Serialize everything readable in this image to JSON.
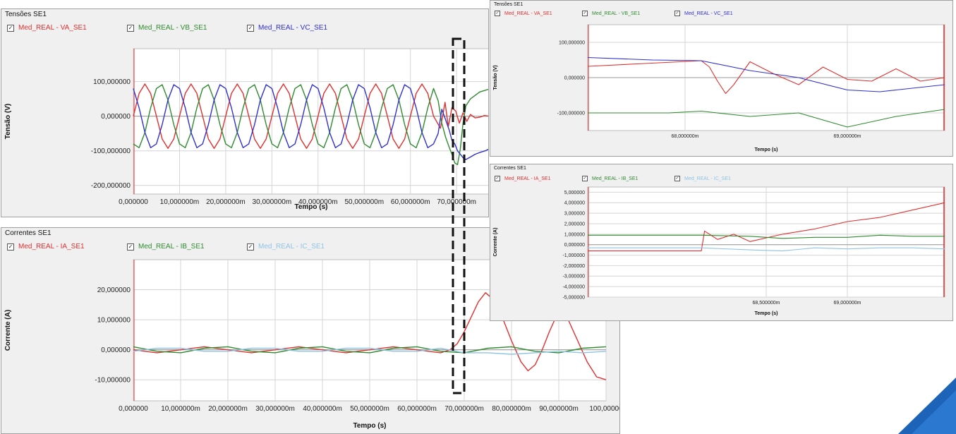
{
  "panels": [
    {
      "id": "tensoes-main",
      "title": "Tensões SE1",
      "legend": [
        {
          "label": "Med_REAL - VA_SE1",
          "color": "#e03030",
          "checked": "✓"
        },
        {
          "label": "Med_REAL - VB_SE1",
          "color": "#2e8b2e",
          "checked": "✓"
        },
        {
          "label": "Med_REAL - VC_SE1",
          "color": "#3030d0",
          "checked": "✓"
        }
      ]
    },
    {
      "id": "correntes-main",
      "title": "Correntes SE1",
      "legend": [
        {
          "label": "Med_REAL - IA_SE1",
          "color": "#e03030",
          "checked": "✓"
        },
        {
          "label": "Med_REAL - IB_SE1",
          "color": "#2e8b2e",
          "checked": "✓"
        },
        {
          "label": "Med_REAL - IC_SE1",
          "color": "#8fc4e6",
          "checked": "✓"
        }
      ]
    },
    {
      "id": "tensoes-zoom",
      "title": "Tensões SE1",
      "legend": [
        {
          "label": "Med_REAL - VA_SE1",
          "color": "#e03030",
          "checked": "✓"
        },
        {
          "label": "Med_REAL - VB_SE1",
          "color": "#2e8b2e",
          "checked": "✓"
        },
        {
          "label": "Med_REAL - VC_SE1",
          "color": "#3030d0",
          "checked": "✓"
        }
      ]
    },
    {
      "id": "correntes-zoom",
      "title": "Correntes SE1",
      "legend": [
        {
          "label": "Med_REAL - IA_SE1",
          "color": "#e03030",
          "checked": "✓"
        },
        {
          "label": "Med_REAL - IB_SE1",
          "color": "#2e8b2e",
          "checked": "✓"
        },
        {
          "label": "Med_REAL - IC_SE1",
          "color": "#8fc4e6",
          "checked": "✓"
        }
      ]
    }
  ],
  "chart_data": [
    {
      "type": "line",
      "title": "Tensões SE1",
      "xlabel": "Tempo (s)",
      "ylabel": "Tensão (V)",
      "xlim": [
        0,
        0.077
      ],
      "ylim": [
        -225,
        195
      ],
      "xticks": [
        0,
        0.01,
        0.02,
        0.03,
        0.04,
        0.05,
        0.06,
        0.07
      ],
      "xtick_labels": [
        "0,000000",
        "10,000000m",
        "20,000000m",
        "30,000000m",
        "40,000000m",
        "50,000000m",
        "60,000000m",
        "70,000000m"
      ],
      "yticks": [
        100,
        0,
        -100,
        -200
      ],
      "ytick_labels": [
        "100,000000",
        "0,000000",
        "-100,000000",
        "-200,000000"
      ],
      "grid": true,
      "legend_position": "top",
      "series": [
        {
          "name": "Med_REAL - VA_SE1",
          "color": "#e03030",
          "x": [
            0,
            0.00125,
            0.0025,
            0.00375,
            0.005,
            0.00625,
            0.0075,
            0.00875,
            0.01,
            0.01125,
            0.0125,
            0.01375,
            0.015,
            0.01625,
            0.0175,
            0.01875,
            0.02,
            0.02125,
            0.0225,
            0.02375,
            0.025,
            0.02625,
            0.0275,
            0.02875,
            0.03,
            0.03125,
            0.0325,
            0.03375,
            0.035,
            0.03625,
            0.0375,
            0.03875,
            0.04,
            0.04125,
            0.0425,
            0.04375,
            0.045,
            0.04625,
            0.0475,
            0.04875,
            0.05,
            0.05125,
            0.0525,
            0.05375,
            0.055,
            0.05625,
            0.0575,
            0.05875,
            0.06,
            0.06125,
            0.0625,
            0.06375,
            0.065,
            0.0665,
            0.0675,
            0.0682,
            0.069,
            0.0698,
            0.0706,
            0.0714,
            0.0722,
            0.073,
            0.074,
            0.075,
            0.076,
            0.077
          ],
          "values": [
            0,
            66,
            93,
            66,
            0,
            -66,
            -93,
            -66,
            0,
            66,
            93,
            66,
            0,
            -66,
            -93,
            -66,
            0,
            66,
            93,
            66,
            0,
            -66,
            -93,
            -66,
            0,
            66,
            93,
            66,
            0,
            -66,
            -93,
            -66,
            0,
            66,
            93,
            66,
            0,
            -66,
            -93,
            -66,
            0,
            66,
            93,
            66,
            0,
            -66,
            -93,
            -66,
            0,
            66,
            93,
            66,
            0,
            -35,
            40,
            -30,
            25,
            15,
            -20,
            10,
            -15,
            5,
            -5,
            -3,
            2,
            0
          ]
        },
        {
          "name": "Med_REAL - VB_SE1",
          "color": "#2e8b2e",
          "x": [
            0,
            0.00125,
            0.0025,
            0.00375,
            0.005,
            0.00625,
            0.0075,
            0.00875,
            0.01,
            0.01125,
            0.0125,
            0.01375,
            0.015,
            0.01625,
            0.0175,
            0.01875,
            0.02,
            0.02125,
            0.0225,
            0.02375,
            0.025,
            0.02625,
            0.0275,
            0.02875,
            0.03,
            0.03125,
            0.0325,
            0.03375,
            0.035,
            0.03625,
            0.0375,
            0.03875,
            0.04,
            0.04125,
            0.0425,
            0.04375,
            0.045,
            0.04625,
            0.0475,
            0.04875,
            0.05,
            0.05125,
            0.0525,
            0.05375,
            0.055,
            0.05625,
            0.0575,
            0.05875,
            0.06,
            0.06125,
            0.0625,
            0.06375,
            0.065,
            0.066,
            0.0668,
            0.0676,
            0.0684,
            0.069,
            0.0696,
            0.0702,
            0.0708,
            0.0714,
            0.072,
            0.073,
            0.074,
            0.075,
            0.0762,
            0.077
          ],
          "values": [
            -80,
            -91,
            -47,
            24,
            80,
            91,
            47,
            -24,
            -80,
            -91,
            -47,
            24,
            80,
            91,
            47,
            -24,
            -80,
            -91,
            -47,
            24,
            80,
            91,
            47,
            -24,
            -80,
            -91,
            -47,
            24,
            80,
            91,
            47,
            -24,
            -80,
            -91,
            -47,
            24,
            80,
            91,
            47,
            -24,
            -80,
            -91,
            -47,
            24,
            80,
            91,
            47,
            -24,
            -80,
            -91,
            -47,
            24,
            80,
            45,
            -20,
            -60,
            -90,
            -110,
            -135,
            -140,
            -95,
            -20,
            30,
            50,
            60,
            70,
            75,
            78
          ]
        },
        {
          "name": "Med_REAL - VC_SE1",
          "color": "#3030d0",
          "x": [
            0,
            0.00125,
            0.0025,
            0.00375,
            0.005,
            0.00625,
            0.0075,
            0.00875,
            0.01,
            0.01125,
            0.0125,
            0.01375,
            0.015,
            0.01625,
            0.0175,
            0.01875,
            0.02,
            0.02125,
            0.0225,
            0.02375,
            0.025,
            0.02625,
            0.0275,
            0.02875,
            0.03,
            0.03125,
            0.0325,
            0.03375,
            0.035,
            0.03625,
            0.0375,
            0.03875,
            0.04,
            0.04125,
            0.0425,
            0.04375,
            0.045,
            0.04625,
            0.0475,
            0.04875,
            0.05,
            0.05125,
            0.0525,
            0.05375,
            0.055,
            0.05625,
            0.0575,
            0.05875,
            0.06,
            0.06125,
            0.0625,
            0.06375,
            0.065,
            0.066,
            0.0668,
            0.0676,
            0.0684,
            0.069,
            0.0696,
            0.0702,
            0.0708,
            0.0714,
            0.072,
            0.073,
            0.074,
            0.075,
            0.0762,
            0.077
          ],
          "values": [
            80,
            24,
            -47,
            -91,
            -80,
            -24,
            47,
            91,
            80,
            24,
            -47,
            -91,
            -80,
            -24,
            47,
            91,
            80,
            24,
            -47,
            -91,
            -80,
            -24,
            47,
            91,
            80,
            24,
            -47,
            -91,
            -80,
            -24,
            47,
            91,
            80,
            24,
            -47,
            -91,
            -80,
            -24,
            47,
            91,
            80,
            24,
            -47,
            -91,
            -80,
            -24,
            47,
            91,
            80,
            24,
            -47,
            -91,
            -80,
            -50,
            20,
            -10,
            -40,
            -70,
            -80,
            -100,
            -110,
            -120,
            -125,
            -118,
            -110,
            -105,
            -100,
            -95
          ]
        }
      ]
    },
    {
      "type": "line",
      "title": "Correntes SE1",
      "xlabel": "Tempo (s)",
      "ylabel": "Corrente (A)",
      "xlim": [
        0,
        0.1
      ],
      "ylim": [
        -17,
        30
      ],
      "xticks": [
        0,
        0.01,
        0.02,
        0.03,
        0.04,
        0.05,
        0.06,
        0.07,
        0.08,
        0.09,
        0.1
      ],
      "xtick_labels": [
        "0,000000",
        "10,000000m",
        "20,000000m",
        "30,000000m",
        "40,000000m",
        "50,000000m",
        "60,000000m",
        "70,000000m",
        "80,000000m",
        "90,000000m",
        "100,00000"
      ],
      "yticks": [
        20,
        10,
        0,
        -10
      ],
      "ytick_labels": [
        "20,000000",
        "10,000000",
        "0,000000",
        "-10,000000"
      ],
      "grid": true,
      "legend_position": "top",
      "series": [
        {
          "name": "Med_REAL - IA_SE1",
          "color": "#e03030",
          "x": [
            0,
            0.005,
            0.01,
            0.015,
            0.02,
            0.025,
            0.03,
            0.035,
            0.04,
            0.045,
            0.05,
            0.055,
            0.06,
            0.065,
            0.067,
            0.0685,
            0.07,
            0.0715,
            0.073,
            0.0745,
            0.076,
            0.078,
            0.08,
            0.082,
            0.0835,
            0.085,
            0.0865,
            0.088,
            0.09,
            0.092,
            0.094,
            0.096,
            0.098,
            0.1
          ],
          "values": [
            0,
            -1,
            0,
            1,
            0,
            -1,
            0,
            1,
            0,
            -1,
            0,
            1,
            0,
            -1,
            0,
            2,
            6,
            11,
            16,
            19,
            17,
            11,
            3,
            -4,
            -7,
            -5,
            0,
            6,
            13,
            10,
            3,
            -4,
            -9,
            -10
          ]
        },
        {
          "name": "Med_REAL - IB_SE1",
          "color": "#2e8b2e",
          "x": [
            0,
            0.005,
            0.01,
            0.015,
            0.02,
            0.025,
            0.03,
            0.035,
            0.04,
            0.045,
            0.05,
            0.055,
            0.06,
            0.065,
            0.07,
            0.075,
            0.08,
            0.085,
            0.09,
            0.095,
            0.1
          ],
          "values": [
            1,
            -0.5,
            -1,
            0.5,
            1,
            -0.5,
            -1,
            0.5,
            1,
            -0.5,
            -1,
            0.5,
            1,
            -0.5,
            -1,
            0.5,
            1,
            -0.5,
            -1,
            0.5,
            1
          ]
        },
        {
          "name": "Med_REAL - IC_SE1",
          "color": "#8fc4e6",
          "x": [
            0,
            0.005,
            0.01,
            0.015,
            0.02,
            0.025,
            0.03,
            0.035,
            0.04,
            0.045,
            0.05,
            0.055,
            0.06,
            0.065,
            0.07,
            0.075,
            0.08,
            0.085,
            0.09,
            0.095,
            0.1
          ],
          "values": [
            -0.5,
            0.5,
            0.5,
            -0.5,
            -0.5,
            0.5,
            0.5,
            -0.5,
            -0.5,
            0.5,
            0.5,
            -0.5,
            -0.5,
            0.5,
            -1,
            -1,
            -1.5,
            -1,
            -0.5,
            -1,
            -0.5
          ]
        }
      ]
    },
    {
      "type": "line",
      "title": "Tensões SE1",
      "xlabel": "Tempo (s)",
      "ylabel": "Tensão (V)",
      "xlim": [
        0.0674,
        0.0696
      ],
      "ylim": [
        -150,
        150
      ],
      "xticks": [
        0.068,
        0.069
      ],
      "xtick_labels": [
        "68,000000m",
        "69,000000m"
      ],
      "yticks": [
        100,
        0,
        -100
      ],
      "ytick_labels": [
        "100,000000",
        "0,000000",
        "-100,000000"
      ],
      "grid": true,
      "legend_position": "top",
      "series": [
        {
          "name": "Med_REAL - VA_SE1",
          "color": "#e03030",
          "x": [
            0.0674,
            0.06775,
            0.0681,
            0.06815,
            0.0682,
            0.06825,
            0.0683,
            0.0684,
            0.06855,
            0.0687,
            0.06885,
            0.069,
            0.06915,
            0.0693,
            0.06945,
            0.0696
          ],
          "values": [
            32,
            40,
            48,
            30,
            -10,
            -45,
            -20,
            45,
            10,
            -20,
            30,
            -5,
            -10,
            25,
            -10,
            0
          ]
        },
        {
          "name": "Med_REAL - VB_SE1",
          "color": "#2e8b2e",
          "x": [
            0.0674,
            0.0679,
            0.0681,
            0.0684,
            0.0687,
            0.069,
            0.0693,
            0.0696
          ],
          "values": [
            -100,
            -100,
            -95,
            -110,
            -100,
            -140,
            -110,
            -90
          ]
        },
        {
          "name": "Med_REAL - VC_SE1",
          "color": "#3030d0",
          "x": [
            0.0674,
            0.0678,
            0.0681,
            0.0684,
            0.0687,
            0.069,
            0.0692,
            0.0694,
            0.0696
          ],
          "values": [
            57,
            50,
            48,
            20,
            0,
            -35,
            -40,
            -30,
            -20
          ]
        }
      ]
    },
    {
      "type": "line",
      "title": "Correntes SE1",
      "xlabel": "Tempo (s)",
      "ylabel": "Corrente (A)",
      "xlim": [
        0.0674,
        0.0696
      ],
      "ylim": [
        -5,
        5.5
      ],
      "xticks": [
        0.0685,
        0.069
      ],
      "xtick_labels": [
        "68,500000m",
        "69,000000m"
      ],
      "yticks": [
        5,
        4,
        3,
        2,
        1,
        0,
        -1,
        -2,
        -3,
        -4,
        -5
      ],
      "ytick_labels": [
        "5,000000",
        "4,000000",
        "3,000000",
        "2,000000",
        "1,000000",
        "0,000000",
        "-1,000000",
        "-2,000000",
        "-3,000000",
        "-4,000000",
        "-5,000000"
      ],
      "grid": true,
      "legend_position": "top",
      "series": [
        {
          "name": "Med_REAL - IA_SE1",
          "color": "#e03030",
          "x": [
            0.0674,
            0.0681,
            0.06812,
            0.0682,
            0.0683,
            0.0684,
            0.0686,
            0.0688,
            0.069,
            0.0692,
            0.0694,
            0.0696
          ],
          "values": [
            -0.6,
            -0.6,
            1.3,
            0.5,
            1.0,
            0.3,
            1.0,
            1.5,
            2.2,
            2.6,
            3.3,
            4.0
          ]
        },
        {
          "name": "Med_REAL - IB_SE1",
          "color": "#2e8b2e",
          "x": [
            0.0674,
            0.0681,
            0.0684,
            0.0686,
            0.0688,
            0.069,
            0.0692,
            0.0694,
            0.0696
          ],
          "values": [
            0.9,
            0.9,
            0.8,
            0.6,
            0.7,
            0.7,
            0.9,
            0.8,
            0.8
          ]
        },
        {
          "name": "Med_REAL - IC_SE1",
          "color": "#8fc4e6",
          "x": [
            0.0674,
            0.0681,
            0.0684,
            0.0686,
            0.0688,
            0.069,
            0.0692,
            0.0694,
            0.0696
          ],
          "values": [
            -0.3,
            -0.3,
            -0.5,
            -0.6,
            -0.3,
            -0.4,
            -0.3,
            -0.3,
            -0.4
          ]
        }
      ]
    }
  ]
}
